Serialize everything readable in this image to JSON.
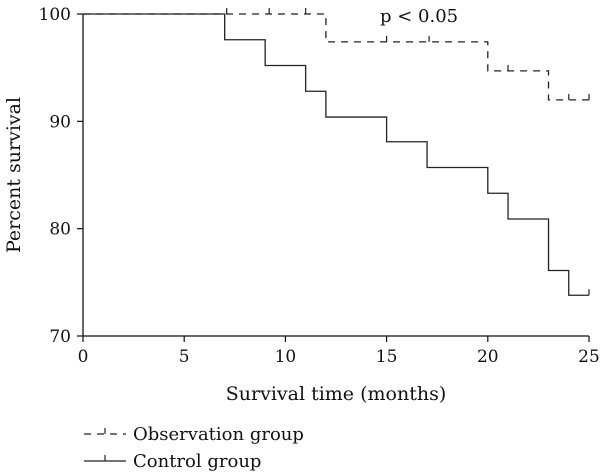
{
  "chart_data": {
    "type": "line",
    "subtype": "kaplan-meier step",
    "title": "",
    "xlabel": "Survival time (months)",
    "ylabel": "Percent survival",
    "xlim": [
      0,
      25
    ],
    "ylim": [
      70,
      100
    ],
    "x_ticks": [
      "0",
      "5",
      "10",
      "15",
      "20",
      "25"
    ],
    "y_ticks": [
      "70",
      "80",
      "90",
      "100"
    ],
    "grid": false,
    "legend_position": "bottom-left",
    "annotation": "p < 0.05",
    "series": [
      {
        "name": "Observation group",
        "style": "dashed",
        "color": "#222222",
        "steps": [
          {
            "x": 0,
            "y": 100
          },
          {
            "x": 12,
            "y": 97.4
          },
          {
            "x": 20,
            "y": 94.7
          },
          {
            "x": 23,
            "y": 92.0
          }
        ],
        "end_x": 25,
        "censored": [
          {
            "x": 7.1,
            "y": 100
          },
          {
            "x": 9.2,
            "y": 100
          },
          {
            "x": 11.0,
            "y": 100
          },
          {
            "x": 15.0,
            "y": 97.4
          },
          {
            "x": 17.1,
            "y": 97.4
          },
          {
            "x": 21.0,
            "y": 94.7
          },
          {
            "x": 24.0,
            "y": 92.0
          },
          {
            "x": 25.0,
            "y": 92.0
          }
        ]
      },
      {
        "name": "Control group",
        "style": "solid",
        "color": "#222222",
        "steps": [
          {
            "x": 0,
            "y": 100
          },
          {
            "x": 7,
            "y": 97.6
          },
          {
            "x": 9,
            "y": 95.2
          },
          {
            "x": 11,
            "y": 92.8
          },
          {
            "x": 12,
            "y": 90.4
          },
          {
            "x": 15,
            "y": 88.1
          },
          {
            "x": 17,
            "y": 85.7
          },
          {
            "x": 20,
            "y": 83.3
          },
          {
            "x": 21,
            "y": 80.9
          },
          {
            "x": 23,
            "y": 76.1
          },
          {
            "x": 24,
            "y": 73.8
          }
        ],
        "end_x": 25,
        "censored": [
          {
            "x": 25.0,
            "y": 73.8
          }
        ]
      }
    ]
  }
}
